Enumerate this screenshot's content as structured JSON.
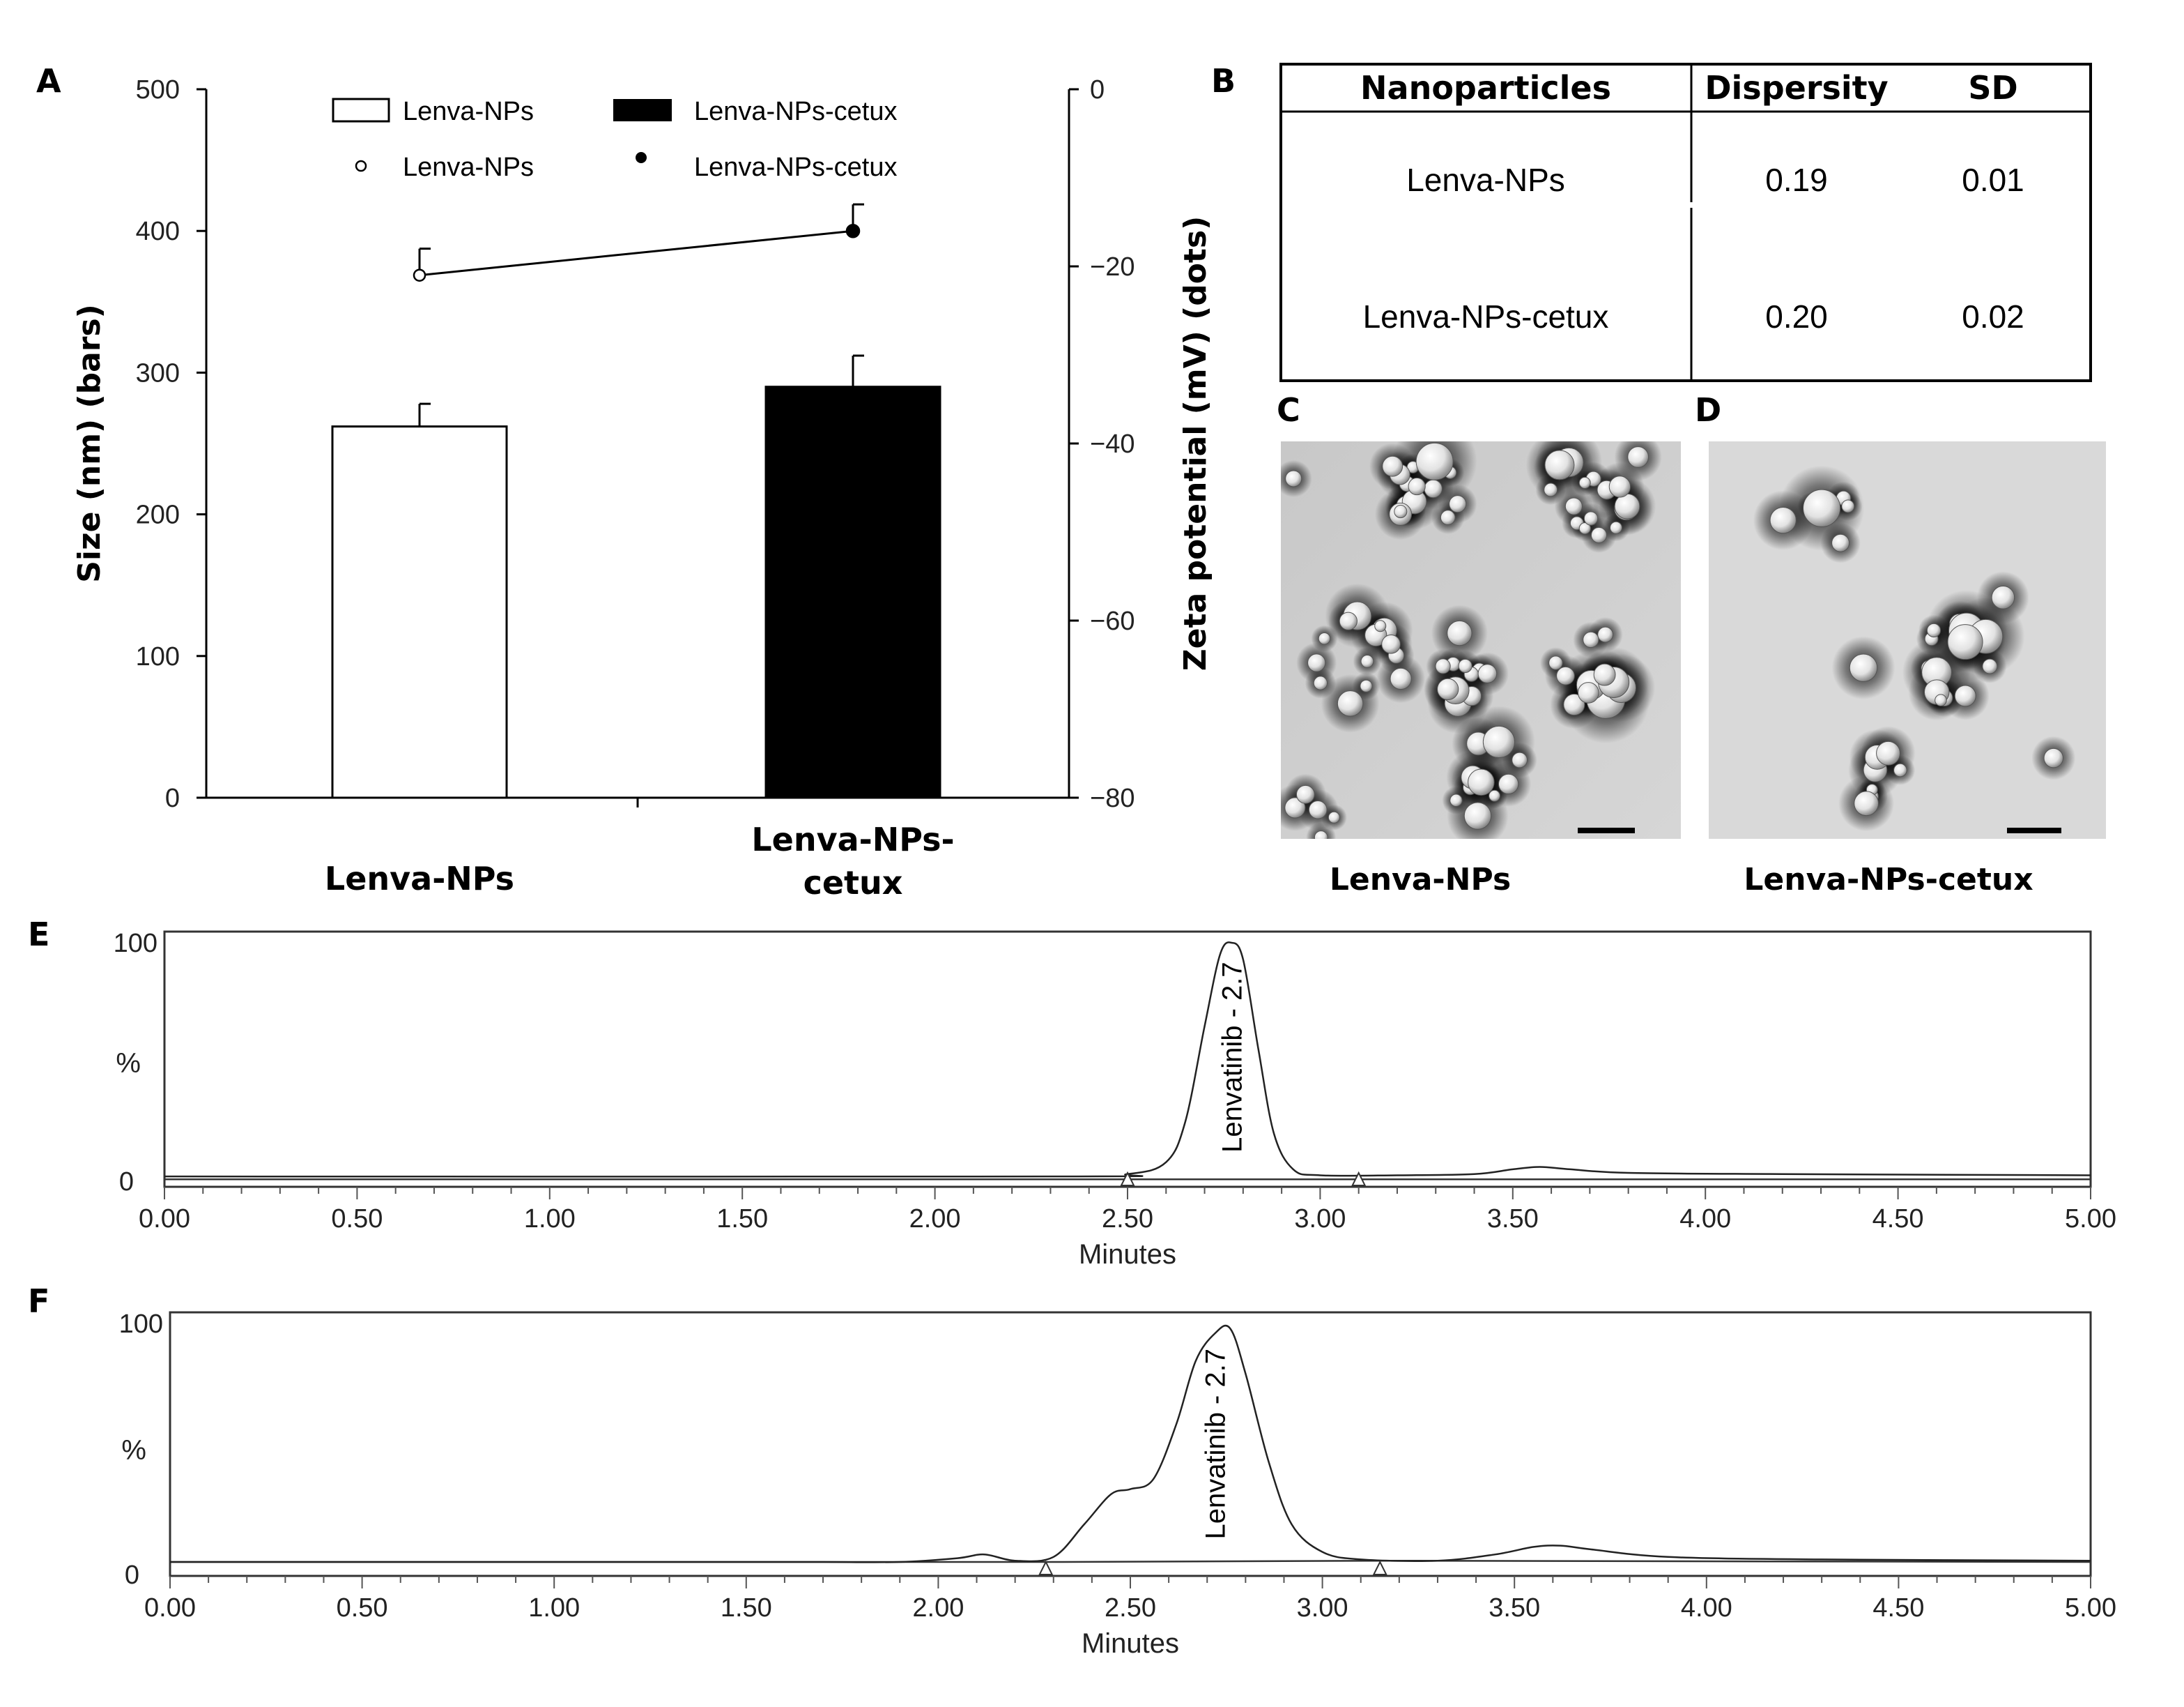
{
  "panels": {
    "A": "A",
    "B": "B",
    "C": "C",
    "D": "D",
    "E": "E",
    "F": "F"
  },
  "chart_data": [
    {
      "id": "A",
      "type": "bar",
      "categories": [
        "Lenva-NPs",
        "Lenva-NPs-cetux"
      ],
      "category_lines": [
        [
          "Lenva-NPs"
        ],
        [
          "Lenva-NPs-",
          "cetux"
        ]
      ],
      "series": [
        {
          "name": "Lenva-NPs",
          "axis": "left",
          "kind": "bar",
          "values": [
            262,
            null
          ],
          "errors": [
            16,
            null
          ],
          "color": "#ffffff"
        },
        {
          "name": "Lenva-NPs-cetux",
          "axis": "left",
          "kind": "bar",
          "values": [
            null,
            290
          ],
          "errors": [
            null,
            22
          ],
          "color": "#000000"
        },
        {
          "name": "Lenva-NPs",
          "axis": "right",
          "kind": "dot",
          "values": [
            -21,
            null
          ],
          "errors": [
            3,
            null
          ],
          "color": "#ffffff"
        },
        {
          "name": "Lenva-NPs-cetux",
          "axis": "right",
          "kind": "dot",
          "values": [
            null,
            -16
          ],
          "errors": [
            null,
            3
          ],
          "color": "#000000"
        }
      ],
      "zeta_line": [
        -21,
        -16
      ],
      "ylabel": "Size (nm) (bars)",
      "y2label": "Zeta potential (mV) (dots)",
      "ylim": [
        0,
        500
      ],
      "y2lim": [
        -80,
        0
      ],
      "yticks": [
        0,
        100,
        200,
        300,
        400,
        500
      ],
      "y2ticks": [
        0,
        -20,
        -40,
        -60,
        -80
      ],
      "y2tick_labels": [
        "0",
        "−20",
        "−40",
        "−60",
        "−80"
      ],
      "legend": [
        "Lenva-NPs",
        "Lenva-NPs-cetux",
        "Lenva-NPs",
        "Lenva-NPs-cetux"
      ]
    },
    {
      "id": "B",
      "type": "table",
      "columns": [
        "Nanoparticles",
        "Dispersity",
        "SD"
      ],
      "rows": [
        [
          "Lenva-NPs",
          "0.19",
          "0.01"
        ],
        [
          "Lenva-NPs-cetux",
          "0.20",
          "0.02"
        ]
      ]
    },
    {
      "id": "E",
      "type": "line",
      "xlabel": "Minutes",
      "ylabel": "%",
      "xlim": [
        0,
        5
      ],
      "ylim": [
        0,
        100
      ],
      "xtick_labels": [
        "0.00",
        "0.50",
        "1.00",
        "1.50",
        "2.00",
        "2.50",
        "3.00",
        "3.50",
        "4.00",
        "4.50",
        "5.00"
      ],
      "ytick_labels": [
        "0",
        "100"
      ],
      "peak_label": "Lenvatinib - 2.7",
      "peak_x": 2.77,
      "x": [
        0,
        2.3,
        2.5,
        2.6,
        2.65,
        2.7,
        2.74,
        2.77,
        2.8,
        2.84,
        2.88,
        2.93,
        3.0,
        3.2,
        3.4,
        3.5,
        3.57,
        3.65,
        3.8,
        4.2,
        5.0
      ],
      "y": [
        2,
        2,
        3,
        8,
        25,
        65,
        95,
        100,
        93,
        55,
        20,
        5,
        2.5,
        2.5,
        3,
        5,
        6,
        5,
        3.5,
        3,
        2.5
      ],
      "baseline": [
        [
          0,
          0.8
        ],
        [
          5,
          0.8
        ]
      ],
      "markers": [
        2.5,
        3.1
      ]
    },
    {
      "id": "F",
      "type": "line",
      "xlabel": "Minutes",
      "ylabel": "%",
      "xlim": [
        0,
        5
      ],
      "ylim": [
        0,
        100
      ],
      "xtick_labels": [
        "0.00",
        "0.50",
        "1.00",
        "1.50",
        "2.00",
        "2.50",
        "3.00",
        "3.50",
        "4.00",
        "4.50",
        "5.00"
      ],
      "ytick_labels": [
        "0",
        "100"
      ],
      "peak_label": "Lenvatinib - 2.7",
      "peak_x": 2.72,
      "x": [
        0,
        1.5,
        1.7,
        1.9,
        2.05,
        2.12,
        2.2,
        2.3,
        2.38,
        2.45,
        2.5,
        2.56,
        2.62,
        2.67,
        2.72,
        2.76,
        2.8,
        2.86,
        2.92,
        3.0,
        3.1,
        3.3,
        3.45,
        3.55,
        3.62,
        3.7,
        3.9,
        4.3,
        5.0
      ],
      "y": [
        5,
        5,
        5,
        5,
        6.5,
        8,
        5.5,
        7,
        20,
        32,
        34,
        38,
        60,
        85,
        96,
        98,
        80,
        45,
        20,
        9,
        6,
        5.5,
        8,
        11,
        11.5,
        10,
        7,
        6,
        5.5
      ],
      "baseline": [
        [
          0,
          5
        ],
        [
          2.3,
          5
        ],
        [
          3.15,
          5.5
        ],
        [
          5,
          5
        ]
      ],
      "markers": [
        2.28,
        3.15
      ]
    }
  ],
  "micrographs": {
    "C": {
      "caption": "Lenva-NPs"
    },
    "D": {
      "caption": "Lenva-NPs-cetux"
    }
  }
}
